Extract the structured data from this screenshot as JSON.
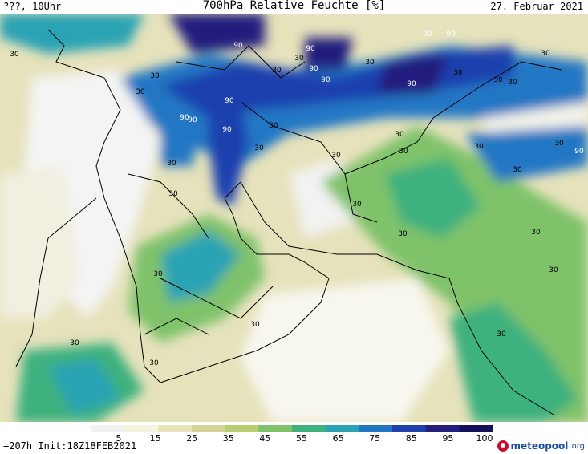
{
  "header": {
    "left": "???, 10Uhr",
    "title": "700hPa Relative Feuchte [%]",
    "date": "27. Februar 2021"
  },
  "footer": {
    "left": "+207h Init:18Z18FEB2021",
    "brand_name": "meteopool",
    "brand_tld": ".org"
  },
  "legend": {
    "ticks": [
      "5",
      "15",
      "25",
      "35",
      "45",
      "55",
      "65",
      "75",
      "85",
      "95",
      "100"
    ],
    "colors": [
      "#f2f2f2",
      "#f6f3df",
      "#e8e4b8",
      "#d5d293",
      "#b7cd70",
      "#7fc26a",
      "#3eb17e",
      "#2aa3b4",
      "#2277c4",
      "#1f3fae",
      "#231d7e",
      "#14105a"
    ]
  },
  "map_labels": [
    "30",
    "30",
    "30",
    "30",
    "30",
    "30",
    "30",
    "30",
    "30",
    "30",
    "30",
    "30",
    "30",
    "30",
    "30",
    "30",
    "30",
    "30",
    "30",
    "30",
    "30",
    "30",
    "30",
    "30",
    "30",
    "30",
    "30",
    "30",
    "30",
    "90",
    "90",
    "90",
    "90",
    "90",
    "90",
    "90",
    "90",
    "90",
    "90",
    "90",
    "90"
  ]
}
